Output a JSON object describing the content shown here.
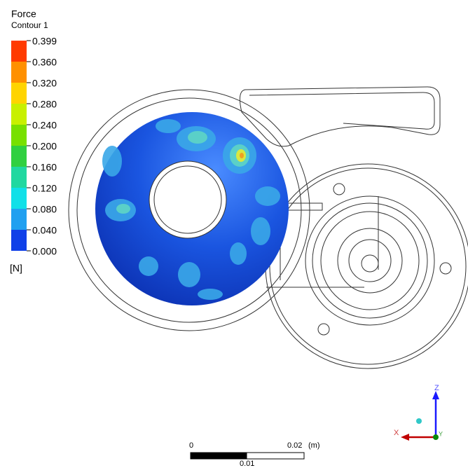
{
  "legend": {
    "title": "Force",
    "subtitle": "Contour 1",
    "labels": [
      "0.399",
      "0.360",
      "0.320",
      "0.280",
      "0.240",
      "0.200",
      "0.160",
      "0.120",
      "0.080",
      "0.040",
      "0.000"
    ],
    "unit": "[N]"
  },
  "scale_bar": {
    "start": "0",
    "end": "0.02",
    "unit": "(m)",
    "middle": "0.01"
  },
  "axes": {
    "z": "Z",
    "x": "X",
    "y": "Y"
  }
}
